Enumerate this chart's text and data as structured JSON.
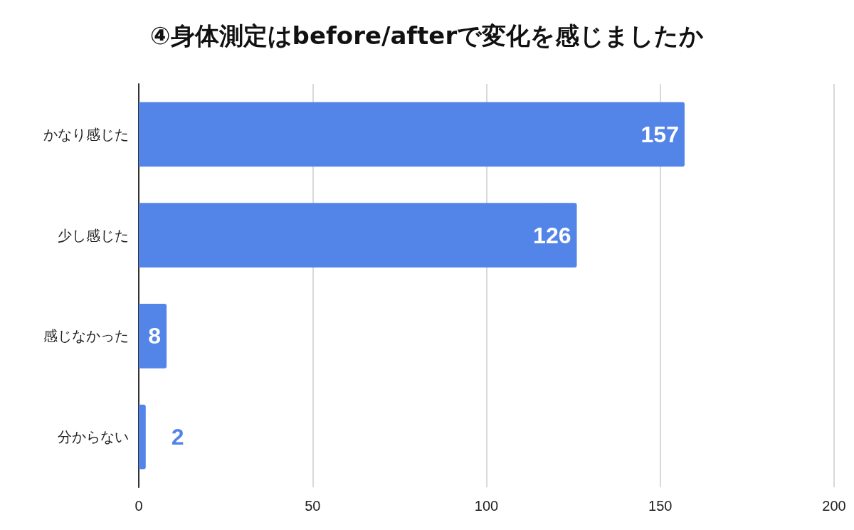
{
  "chart_data": {
    "type": "bar",
    "orientation": "horizontal",
    "title": "④身体測定はbefore/afterで変化を感じましたか",
    "categories": [
      "かなり感じた",
      "少し感じた",
      "感じなかった",
      "分からない"
    ],
    "values": [
      157,
      126,
      8,
      2
    ],
    "color": "#5384e8",
    "xlim": [
      0,
      200
    ],
    "xticks": [
      0,
      50,
      100,
      150,
      200
    ],
    "grid": "x",
    "data_labels": true
  }
}
